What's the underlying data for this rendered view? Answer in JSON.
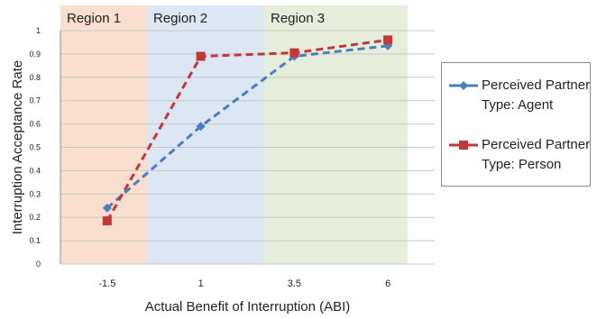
{
  "chart_data": {
    "type": "line",
    "title": "",
    "xlabel": "Actual Benefit of Interruption (ABI)",
    "ylabel": "Interruption Acceptance Rate",
    "categories": [
      "-1.5",
      "1",
      "3.5",
      "6"
    ],
    "ylim": [
      0,
      1
    ],
    "yticks": [
      "0",
      "0.1",
      "0.2",
      "0.3",
      "0.4",
      "0.5",
      "0.6",
      "0.7",
      "0.8",
      "0.9",
      "1"
    ],
    "grid": true,
    "legend_position": "right",
    "regions": [
      {
        "label": "Region 1",
        "from_category": 0,
        "to_category": 0,
        "color": "#f8dfcf"
      },
      {
        "label": "Region 2",
        "from_category": 1,
        "to_category": 1,
        "color": "#dde6f3"
      },
      {
        "label": "Region 3",
        "from_category": 2,
        "to_category": 3,
        "color": "#e6eedb"
      }
    ],
    "series": [
      {
        "name_line1": "Perceived Partner",
        "name_line2": "Type: Agent",
        "values": [
          0.24,
          0.59,
          0.89,
          0.935
        ],
        "color": "#4a7ebf",
        "marker": "diamond",
        "dash": "dashed"
      },
      {
        "name_line1": "Perceived Partner",
        "name_line2": "Type: Person",
        "values": [
          0.185,
          0.89,
          0.905,
          0.96
        ],
        "color": "#c0393a",
        "marker": "square",
        "dash": "dashed"
      }
    ]
  }
}
